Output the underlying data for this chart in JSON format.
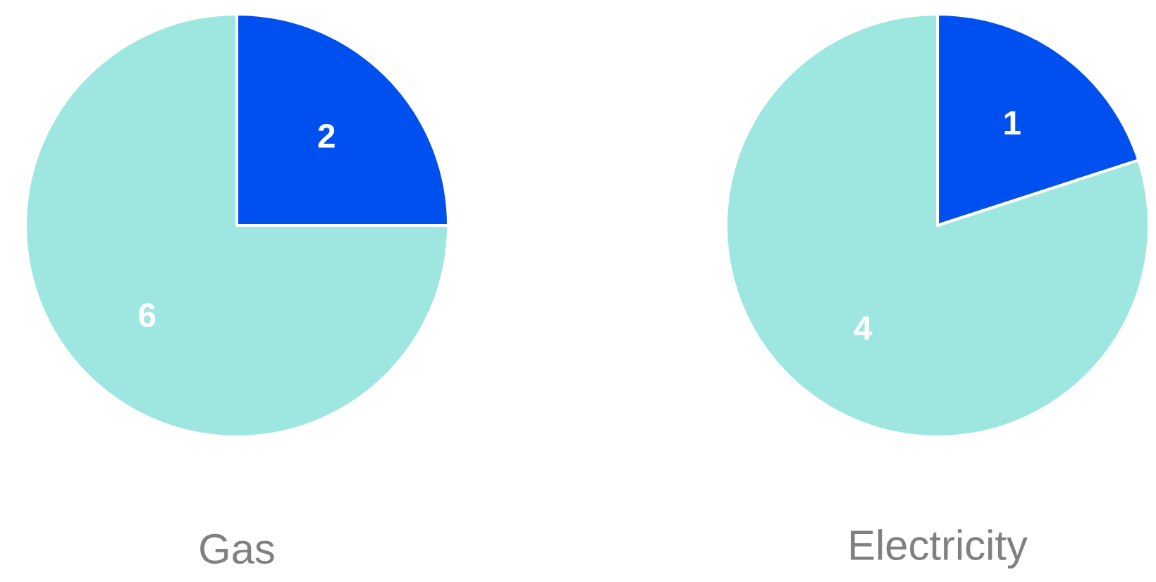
{
  "chart_data": [
    {
      "type": "pie",
      "title": "Gas",
      "categories": [
        null,
        null
      ],
      "values": [
        2,
        6
      ],
      "colors": [
        "#0050ef",
        "#9ee6e0"
      ],
      "data_labels": true
    },
    {
      "type": "pie",
      "title": "Electricity",
      "categories": [
        null,
        null
      ],
      "values": [
        1,
        4
      ],
      "colors": [
        "#0050ef",
        "#9ee6e0"
      ],
      "data_labels": true
    }
  ]
}
